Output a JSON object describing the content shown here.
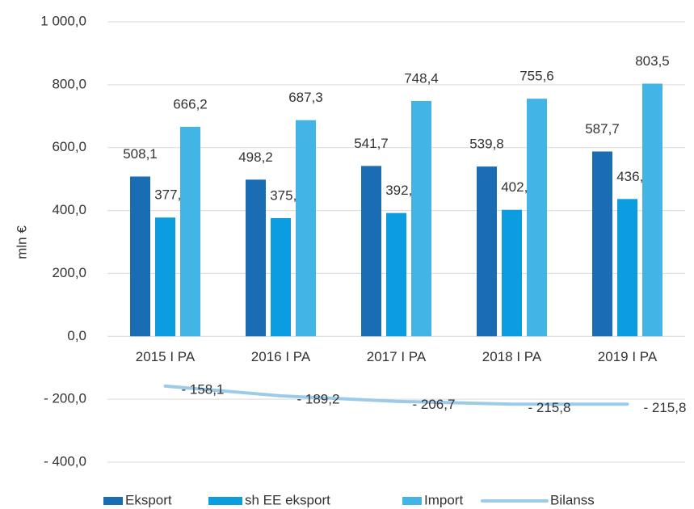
{
  "chart_data": {
    "type": "bar",
    "y_label": "mln €",
    "categories": [
      "2015 I PA",
      "2016 I PA",
      "2017 I PA",
      "2018 I PA",
      "2019 I PA"
    ],
    "series": [
      {
        "name": "Eksport",
        "type": "bar",
        "color": "#1b6db3",
        "values": [
          508.1,
          498.2,
          541.7,
          539.8,
          587.7
        ],
        "value_labels": [
          "508,1",
          "498,2",
          "541,7",
          "539,8",
          "587,7"
        ]
      },
      {
        "name": "sh EE eksport",
        "type": "bar",
        "color": "#0c9de0",
        "values": [
          377.7,
          375.9,
          392.1,
          402.2,
          436.6
        ],
        "value_labels": [
          "377,7",
          "375,9",
          "392,1",
          "402,2",
          "436,6"
        ]
      },
      {
        "name": "Import",
        "type": "bar",
        "color": "#42b5e6",
        "values": [
          666.2,
          687.3,
          748.4,
          755.6,
          803.5
        ],
        "value_labels": [
          "666,2",
          "687,3",
          "748,4",
          "755,6",
          "803,5"
        ]
      },
      {
        "name": "Bilanss",
        "type": "line",
        "color": "#9ccbe9",
        "values": [
          -158.1,
          -189.2,
          -206.7,
          -215.8,
          -215.8
        ],
        "value_labels": [
          "- 158,1",
          "- 189,2",
          "- 206,7",
          "- 215,8",
          "- 215,8"
        ]
      }
    ],
    "ylim": [
      -400,
      1000
    ],
    "yticks": [
      {
        "value": -400,
        "label": "- 400,0"
      },
      {
        "value": -200,
        "label": "- 200,0"
      },
      {
        "value": 0,
        "label": "0,0"
      },
      {
        "value": 200,
        "label": "200,0"
      },
      {
        "value": 400,
        "label": "400,0"
      },
      {
        "value": 600,
        "label": "600,0"
      },
      {
        "value": 800,
        "label": "800,0"
      },
      {
        "value": 1000,
        "label": "1 000,0"
      }
    ],
    "grid": true,
    "legend": "bottom"
  }
}
